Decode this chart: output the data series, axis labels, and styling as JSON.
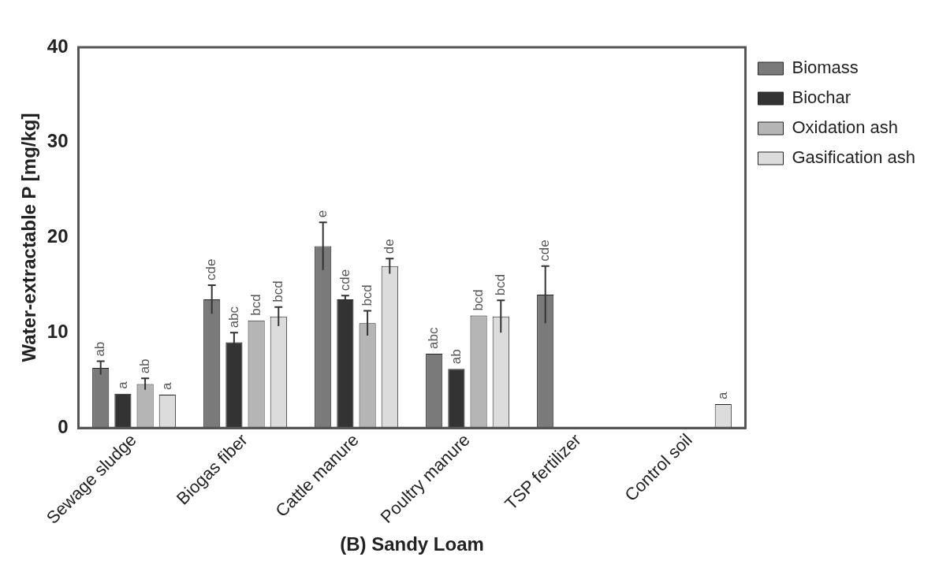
{
  "chart_data": {
    "type": "bar",
    "xlabel": "(B) Sandy Loam",
    "ylabel": "Water-extractable P [mg/kg]",
    "categories": [
      "Sewage sludge",
      "Biogas fiber",
      "Cattle manure",
      "Poultry manure",
      "TSP fertilizer",
      "Control soil"
    ],
    "series": [
      {
        "name": "Biomass",
        "color": "#7a7a7a",
        "values": [
          6.3,
          13.5,
          19.1,
          7.8,
          14.0,
          null
        ],
        "errors": [
          0.7,
          1.5,
          2.5,
          null,
          3.0,
          null
        ],
        "value_labels": [
          "ab",
          "cde",
          "e",
          "abc",
          "cde",
          null
        ]
      },
      {
        "name": "Biochar",
        "color": "#333333",
        "values": [
          3.6,
          9.0,
          13.5,
          6.2,
          null,
          null
        ],
        "errors": [
          null,
          1.0,
          0.4,
          null,
          null,
          null
        ],
        "value_labels": [
          "a",
          "abc",
          "cde",
          "ab",
          null,
          null
        ]
      },
      {
        "name": "Oxidation ash",
        "color": "#b5b5b5",
        "values": [
          4.6,
          11.3,
          11.0,
          11.8,
          null,
          null
        ],
        "errors": [
          0.6,
          null,
          1.3,
          null,
          null,
          null
        ],
        "value_labels": [
          "ab",
          "bcd",
          "bcd",
          "bcd",
          null,
          null
        ]
      },
      {
        "name": "Gasification ash",
        "color": "#dcdcdc",
        "values": [
          3.5,
          11.7,
          17.0,
          11.7,
          null,
          2.5
        ],
        "errors": [
          null,
          1.0,
          0.8,
          1.7,
          null,
          null
        ],
        "value_labels": [
          "a",
          "bcd",
          "de",
          "bcd",
          null,
          "a"
        ]
      }
    ],
    "ylim": [
      0,
      40
    ],
    "yticks": [
      0,
      10,
      20,
      30,
      40
    ],
    "grid": false,
    "legend": "right"
  }
}
